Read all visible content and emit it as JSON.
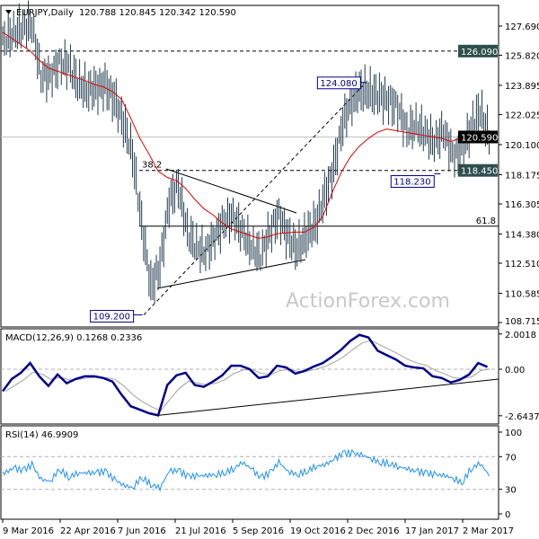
{
  "header": {
    "symbol": "EURJPY,Daily",
    "ohlc": "120.788 120.845 120.342 120.590"
  },
  "watermark": "ActionForex.com",
  "colors": {
    "bars": "#1f3a4d",
    "ma": "#e00000",
    "macd": "#00008b",
    "signal": "#a0a0a0",
    "rsi": "#1e90ff",
    "tag_bg": "#2f4f4f",
    "current_tag_bg": "#000000",
    "label_border": "#00008b"
  },
  "chart_data": [
    {
      "type": "bar",
      "panel": "price",
      "title": "EURJPY,Daily",
      "x_interval": "weekly",
      "x_start": "2016-03-11",
      "ylim": [
        108.715,
        127.69
      ],
      "y_ticks": [
        "127.690",
        "125.820",
        "123.895",
        "122.025",
        "120.100",
        "118.175",
        "116.305",
        "114.380",
        "112.510",
        "110.585",
        "108.715"
      ],
      "x_ticks": [
        "9 Mar 2016",
        "22 Apr 2016",
        "7 Jun 2016",
        "21 Jul 2016",
        "5 Sep 2016",
        "19 Oct 2016",
        "2 Dec 2016",
        "17 Jan 2017",
        "2 Mar 2017"
      ],
      "close": [
        126.8,
        127.2,
        127.6,
        127.8,
        124.5,
        124.5,
        125.3,
        125.2,
        124.0,
        123.6,
        123.7,
        123.9,
        123.0,
        121.5,
        119.5,
        115.0,
        111.0,
        112.3,
        116.5,
        117.5,
        114.5,
        113.5,
        113.2,
        114.2,
        115.2,
        115.5,
        114.5,
        113.5,
        113.0,
        114.5,
        115.6,
        114.2,
        113.4,
        114.3,
        115.0,
        116.8,
        118.6,
        121.5,
        123.0,
        123.6,
        123.4,
        123.2,
        122.9,
        122.5,
        121.0,
        121.3,
        120.8,
        120.2,
        121.0,
        119.5,
        119.5,
        121.2,
        122.3,
        120.59
      ],
      "moving_average": [
        127.3,
        126.9,
        126.5,
        126.1,
        125.5,
        125.0,
        124.8,
        124.6,
        124.4,
        124.2,
        123.95,
        123.8,
        123.5,
        123.0,
        121.8,
        120.5,
        119.5,
        118.4,
        118.0,
        117.8,
        117.3,
        116.6,
        116.0,
        115.6,
        115.1,
        114.7,
        114.5,
        114.3,
        114.1,
        114.2,
        114.4,
        114.45,
        114.5,
        114.5,
        114.8,
        115.5,
        117.0,
        118.3,
        119.3,
        120.0,
        120.5,
        120.9,
        121.1,
        121.0,
        120.9,
        120.8,
        120.7,
        120.6,
        120.5,
        120.3,
        120.5,
        120.8,
        120.8,
        120.7
      ],
      "levels": [
        {
          "price": 126.09,
          "label": "126.090",
          "style": "dashed"
        },
        {
          "price": 120.59,
          "label": "120.590",
          "style": "current"
        },
        {
          "price": 118.45,
          "label": "118.450",
          "style": "dashed",
          "fib": "38.2"
        },
        {
          "price": 114.88,
          "label": "",
          "style": "solid",
          "fib": "61.8"
        }
      ],
      "annotations": [
        {
          "label": "124.080",
          "price": 124.08,
          "date": "2016-12-12"
        },
        {
          "label": "118.230",
          "price": 118.23,
          "date": "2017-02-07"
        },
        {
          "label": "109.200",
          "price": 109.2,
          "date": "2016-06-24"
        }
      ]
    },
    {
      "type": "line",
      "panel": "macd",
      "title": "MACD(12,26,9) 0.1268 0.2336",
      "ylim": [
        -2.6437,
        2.0018
      ],
      "y_ticks": [
        "2.0018",
        "0.00",
        "-2.6437"
      ],
      "macd": [
        -1.25,
        -0.55,
        -0.2,
        0.35,
        -0.4,
        -0.95,
        -0.3,
        -0.8,
        -0.55,
        -0.4,
        -0.4,
        -0.5,
        -0.7,
        -1.45,
        -2.1,
        -2.3,
        -2.5,
        -2.62,
        -0.9,
        -0.35,
        -0.2,
        -0.9,
        -1.0,
        -0.7,
        -0.35,
        0.2,
        0.2,
        0.0,
        -0.5,
        -0.4,
        0.2,
        0.1,
        -0.25,
        -0.1,
        0.15,
        0.35,
        0.7,
        1.1,
        1.6,
        1.95,
        1.8,
        1.05,
        0.8,
        0.55,
        0.2,
        0.1,
        0.05,
        -0.4,
        -0.5,
        -0.75,
        -0.6,
        -0.3,
        0.35,
        0.13
      ]
    },
    {
      "type": "line",
      "panel": "rsi",
      "title": "RSI(14) 46.9909",
      "ylim": [
        0,
        100
      ],
      "y_ticks": [
        "100",
        "70",
        "30",
        "0"
      ],
      "rsi": [
        50,
        56,
        53,
        60,
        42,
        40,
        55,
        45,
        50,
        50,
        50,
        52,
        42,
        35,
        32,
        45,
        36,
        32,
        52,
        53,
        46,
        46,
        47,
        48,
        50,
        55,
        63,
        55,
        44,
        50,
        63,
        52,
        48,
        52,
        58,
        60,
        66,
        74,
        74,
        72,
        68,
        63,
        62,
        58,
        55,
        52,
        50,
        48,
        47,
        44,
        38,
        55,
        62,
        47
      ]
    }
  ]
}
